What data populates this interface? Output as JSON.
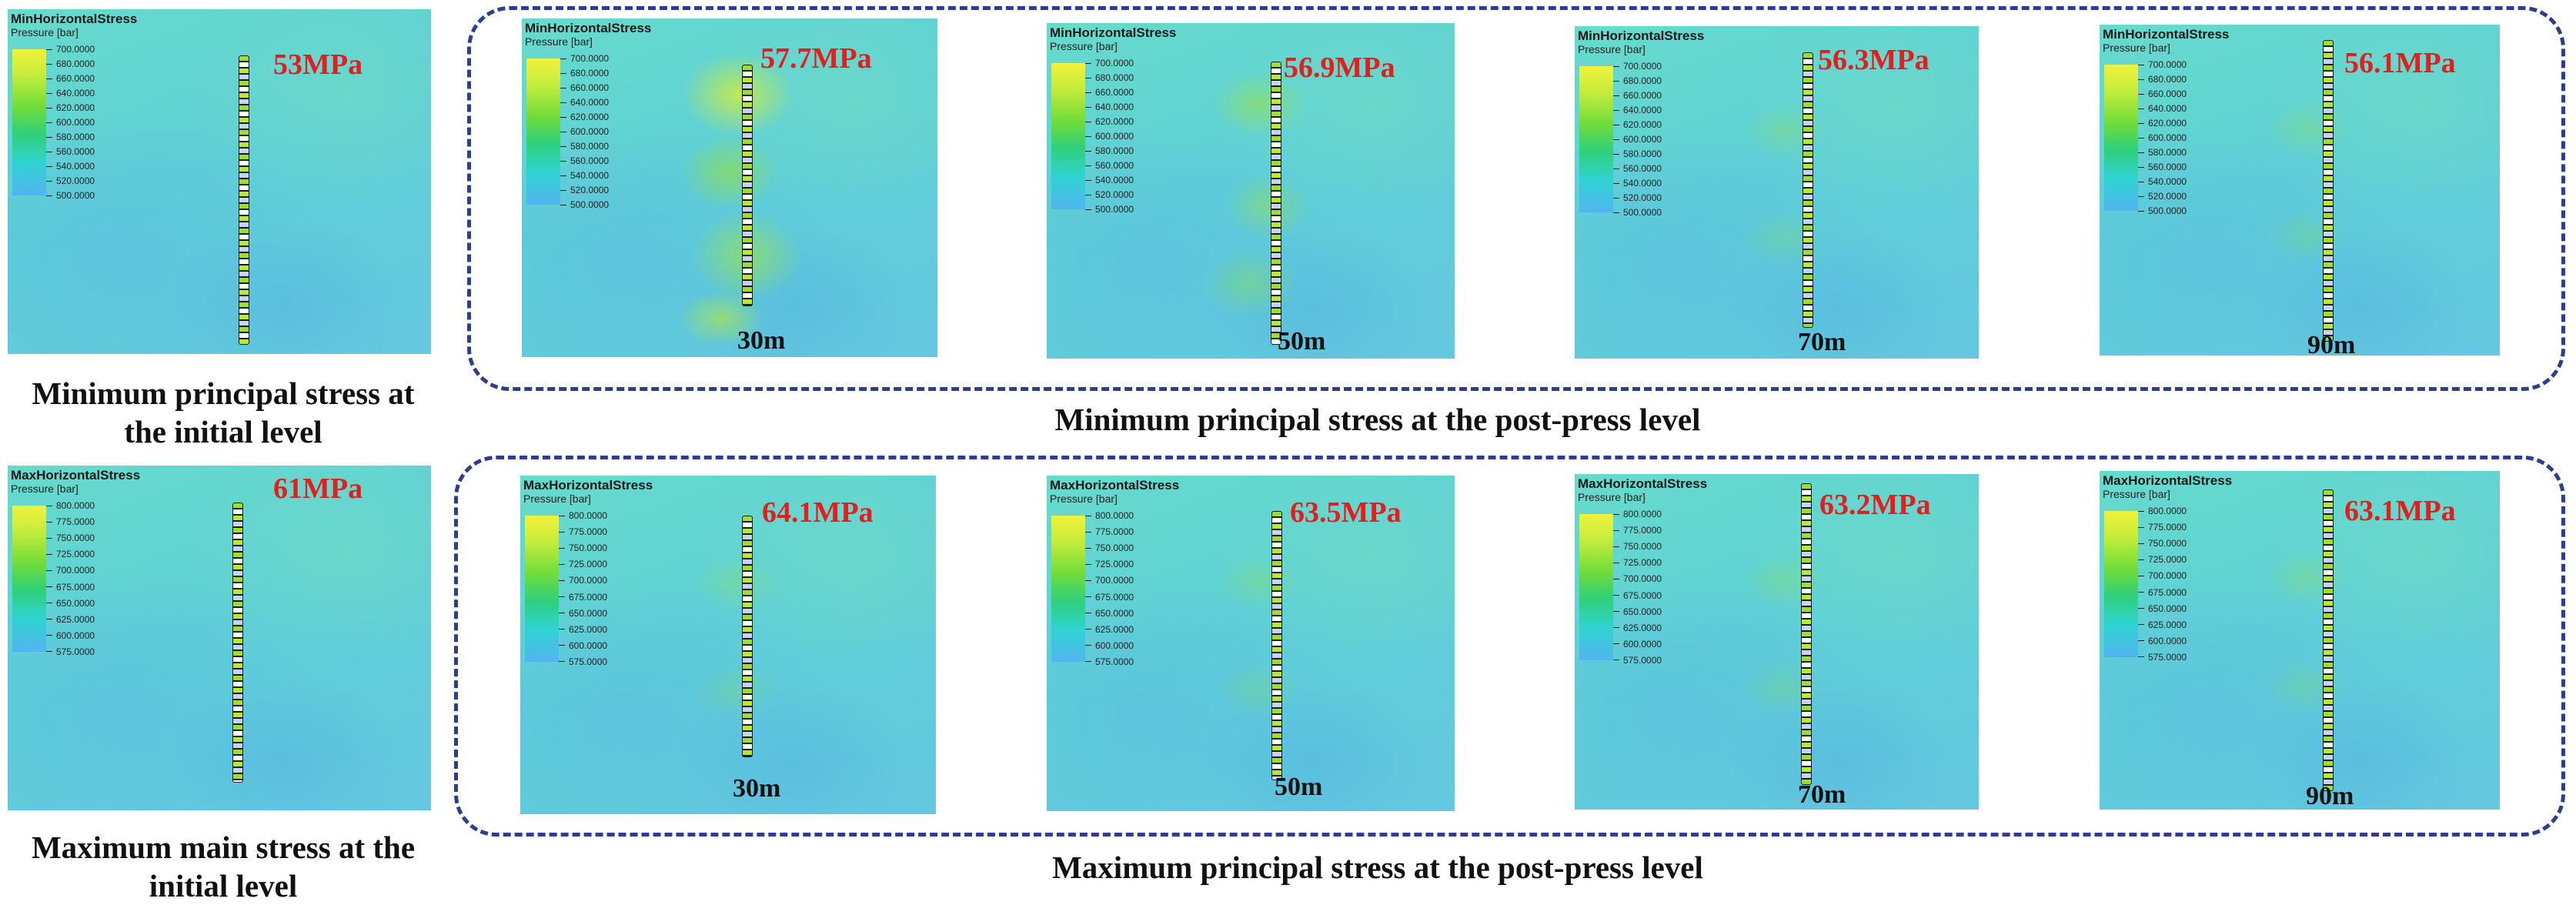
{
  "colors": {
    "stress_label": "#e0201e",
    "dashed_border": "#2e3e8e",
    "background_field": "#5ed0d3"
  },
  "captions": {
    "initial_min": "Minimum principal stress at the initial level",
    "initial_max": "Maximum main stress at the initial level",
    "post_min": "Minimum principal stress at the post-press level",
    "post_max": "Maximum principal stress at the post-press level"
  },
  "min_panels": [
    {
      "title": "MinHorizontalStress",
      "unit": "Pressure [bar]",
      "stress": "53MPa",
      "distance": "",
      "ticks": [
        "700.0000",
        "680.0000",
        "660.0000",
        "640.0000",
        "620.0000",
        "600.0000",
        "580.0000",
        "560.0000",
        "540.0000",
        "520.0000",
        "500.0000"
      ]
    },
    {
      "title": "MinHorizontalStress",
      "unit": "Pressure [bar]",
      "stress": "57.7MPa",
      "distance": "30m",
      "ticks": [
        "700.0000",
        "680.0000",
        "660.0000",
        "640.0000",
        "620.0000",
        "600.0000",
        "580.0000",
        "560.0000",
        "540.0000",
        "520.0000",
        "500.0000"
      ]
    },
    {
      "title": "MinHorizontalStress",
      "unit": "Pressure [bar]",
      "stress": "56.9MPa",
      "distance": "50m",
      "ticks": [
        "700.0000",
        "680.0000",
        "660.0000",
        "640.0000",
        "620.0000",
        "600.0000",
        "580.0000",
        "560.0000",
        "540.0000",
        "520.0000",
        "500.0000"
      ]
    },
    {
      "title": "MinHorizontalStress",
      "unit": "Pressure [bar]",
      "stress": "56.3MPa",
      "distance": "70m",
      "ticks": [
        "700.0000",
        "680.0000",
        "660.0000",
        "640.0000",
        "620.0000",
        "600.0000",
        "580.0000",
        "560.0000",
        "540.0000",
        "520.0000",
        "500.0000"
      ]
    },
    {
      "title": "MinHorizontalStress",
      "unit": "Pressure [bar]",
      "stress": "56.1MPa",
      "distance": "90m",
      "ticks": [
        "700.0000",
        "680.0000",
        "660.0000",
        "640.0000",
        "620.0000",
        "600.0000",
        "580.0000",
        "560.0000",
        "540.0000",
        "520.0000",
        "500.0000"
      ]
    }
  ],
  "max_panels": [
    {
      "title": "MaxHorizontalStress",
      "unit": "Pressure [bar]",
      "stress": "61MPa",
      "distance": "",
      "ticks": [
        "800.0000",
        "775.0000",
        "750.0000",
        "725.0000",
        "700.0000",
        "675.0000",
        "650.0000",
        "625.0000",
        "600.0000",
        "575.0000"
      ]
    },
    {
      "title": "MaxHorizontalStress",
      "unit": "Pressure [bar]",
      "stress": "64.1MPa",
      "distance": "30m",
      "ticks": [
        "800.0000",
        "775.0000",
        "750.0000",
        "725.0000",
        "700.0000",
        "675.0000",
        "650.0000",
        "625.0000",
        "600.0000",
        "575.0000"
      ]
    },
    {
      "title": "MaxHorizontalStress",
      "unit": "Pressure [bar]",
      "stress": "63.5MPa",
      "distance": "50m",
      "ticks": [
        "800.0000",
        "775.0000",
        "750.0000",
        "725.0000",
        "700.0000",
        "675.0000",
        "650.0000",
        "625.0000",
        "600.0000",
        "575.0000"
      ]
    },
    {
      "title": "MaxHorizontalStress",
      "unit": "Pressure [bar]",
      "stress": "63.2MPa",
      "distance": "70m",
      "ticks": [
        "800.0000",
        "775.0000",
        "750.0000",
        "725.0000",
        "700.0000",
        "675.0000",
        "650.0000",
        "625.0000",
        "600.0000",
        "575.0000"
      ]
    },
    {
      "title": "MaxHorizontalStress",
      "unit": "Pressure [bar]",
      "stress": "63.1MPa",
      "distance": "90m",
      "ticks": [
        "800.0000",
        "775.0000",
        "750.0000",
        "725.0000",
        "700.0000",
        "675.0000",
        "650.0000",
        "625.0000",
        "600.0000",
        "575.0000"
      ]
    }
  ]
}
